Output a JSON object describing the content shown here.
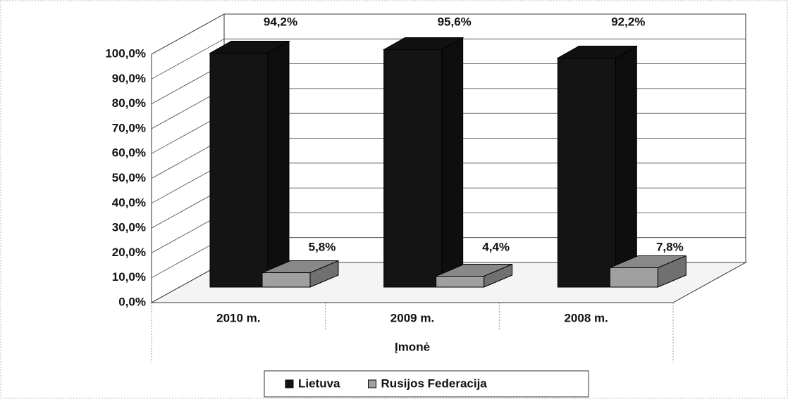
{
  "chart_data": {
    "type": "bar3d",
    "categories": [
      "2010 m.",
      "2009 m.",
      "2008 m."
    ],
    "x_label": "Įmonė",
    "series": [
      {
        "name": "Lietuva",
        "color": "#141414",
        "values": [
          94.2,
          95.6,
          92.2
        ],
        "value_labels": [
          "94,2%",
          "95,6%",
          "92,2%"
        ]
      },
      {
        "name": "Rusijos Federacija",
        "color": "#a0a0a0",
        "values": [
          5.8,
          4.4,
          7.8
        ],
        "value_labels": [
          "5,8%",
          "4,4%",
          "7,8%"
        ]
      }
    ],
    "ylim": [
      0,
      100
    ],
    "yticks": [
      {
        "value": 0,
        "label": "0,0%"
      },
      {
        "value": 10,
        "label": "10,0%"
      },
      {
        "value": 20,
        "label": "20,0%"
      },
      {
        "value": 30,
        "label": "30,0%"
      },
      {
        "value": 40,
        "label": "40,0%"
      },
      {
        "value": 50,
        "label": "50,0%"
      },
      {
        "value": 60,
        "label": "60,0%"
      },
      {
        "value": 70,
        "label": "70,0%"
      },
      {
        "value": 80,
        "label": "80,0%"
      },
      {
        "value": 90,
        "label": "90,0%"
      },
      {
        "value": 100,
        "label": "100,0%"
      }
    ],
    "grid": true,
    "legend": "bottom"
  }
}
